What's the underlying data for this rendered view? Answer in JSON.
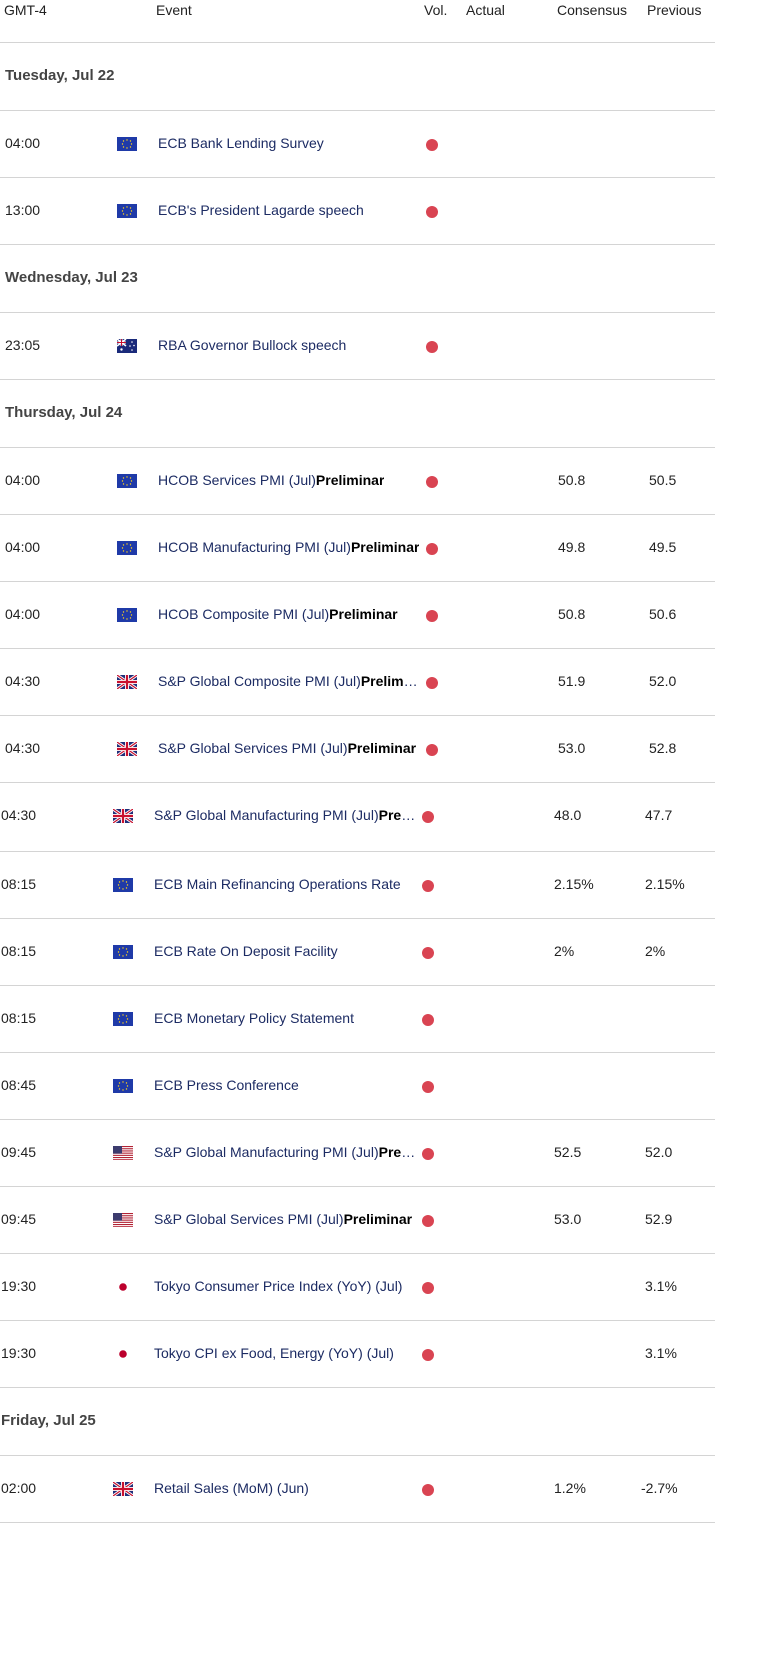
{
  "columns": {
    "tz": "GMT-4",
    "event": "Event",
    "vol": "Vol.",
    "actual": "Actual",
    "consensus": "Consensus",
    "previous": "Previous"
  },
  "colors": {
    "volatility_dot": "#d94452",
    "event_text": "#1c2b63"
  },
  "sections": [
    {
      "day": "Tuesday, Jul 22",
      "events": [
        {
          "time": "04:00",
          "flag": "eu-flag",
          "event": "ECB Bank Lending Survey",
          "bold": "",
          "volatility": "high",
          "actual": "",
          "consensus": "",
          "previous": ""
        },
        {
          "time": "13:00",
          "flag": "eu-flag",
          "event": "ECB's President Lagarde speech",
          "bold": "",
          "volatility": "high",
          "actual": "",
          "consensus": "",
          "previous": ""
        }
      ]
    },
    {
      "day": "Wednesday, Jul 23",
      "events": [
        {
          "time": "23:05",
          "flag": "au-flag",
          "event": "RBA Governor Bullock speech",
          "bold": "",
          "volatility": "high",
          "actual": "",
          "consensus": "",
          "previous": ""
        }
      ]
    },
    {
      "day": "Thursday, Jul 24",
      "events": [
        {
          "time": "04:00",
          "flag": "eu-flag",
          "event": "HCOB Services PMI (Jul)",
          "bold": "Preliminar",
          "volatility": "high",
          "actual": "",
          "consensus": "50.8",
          "previous": "50.5"
        },
        {
          "time": "04:00",
          "flag": "eu-flag",
          "event": "HCOB Manufacturing PMI (Jul)",
          "bold": "Preliminar",
          "volatility": "high",
          "actual": "",
          "consensus": "49.8",
          "previous": "49.5"
        },
        {
          "time": "04:00",
          "flag": "eu-flag",
          "event": "HCOB Composite PMI (Jul)",
          "bold": "Preliminar",
          "volatility": "high",
          "actual": "",
          "consensus": "50.8",
          "previous": "50.6"
        },
        {
          "time": "04:30",
          "flag": "uk-flag",
          "event": "S&P Global Composite PMI (Jul)",
          "bold": "Preliminar",
          "volatility": "high",
          "actual": "",
          "consensus": "51.9",
          "previous": "52.0"
        },
        {
          "time": "04:30",
          "flag": "uk-flag",
          "event": "S&P Global Services PMI (Jul)",
          "bold": "Preliminar",
          "volatility": "high",
          "actual": "",
          "consensus": "53.0",
          "previous": "52.8"
        },
        {
          "time": "04:30",
          "flag": "uk-flag",
          "event": "S&P Global Manufacturing PMI (Jul)",
          "bold": "Preliminar",
          "volatility": "high",
          "actual": "",
          "consensus": "48.0",
          "previous": "47.7"
        },
        {
          "time": "08:15",
          "flag": "eu-flag",
          "event": "ECB Main Refinancing Operations Rate",
          "bold": "",
          "volatility": "high",
          "actual": "",
          "consensus": "2.15%",
          "previous": "2.15%"
        },
        {
          "time": "08:15",
          "flag": "eu-flag",
          "event": "ECB Rate On Deposit Facility",
          "bold": "",
          "volatility": "high",
          "actual": "",
          "consensus": "2%",
          "previous": "2%"
        },
        {
          "time": "08:15",
          "flag": "eu-flag",
          "event": "ECB Monetary Policy Statement",
          "bold": "",
          "volatility": "high",
          "actual": "",
          "consensus": "",
          "previous": ""
        },
        {
          "time": "08:45",
          "flag": "eu-flag",
          "event": "ECB Press Conference",
          "bold": "",
          "volatility": "high",
          "actual": "",
          "consensus": "",
          "previous": ""
        },
        {
          "time": "09:45",
          "flag": "us-flag",
          "event": "S&P Global Manufacturing PMI (Jul)",
          "bold": "Preliminar",
          "volatility": "high",
          "actual": "",
          "consensus": "52.5",
          "previous": "52.0"
        },
        {
          "time": "09:45",
          "flag": "us-flag",
          "event": "S&P Global Services PMI (Jul)",
          "bold": "Preliminar",
          "volatility": "high",
          "actual": "",
          "consensus": "53.0",
          "previous": "52.9"
        },
        {
          "time": "19:30",
          "flag": "jp-flag",
          "event": "Tokyo Consumer Price Index (YoY) (Jul)",
          "bold": "",
          "volatility": "high",
          "actual": "",
          "consensus": "",
          "previous": "3.1%"
        },
        {
          "time": "19:30",
          "flag": "jp-flag",
          "event": "Tokyo CPI ex Food, Energy (YoY) (Jul)",
          "bold": "",
          "volatility": "high",
          "actual": "",
          "consensus": "",
          "previous": "3.1%"
        }
      ]
    },
    {
      "day": "Friday, Jul 25",
      "events": [
        {
          "time": "02:00",
          "flag": "uk-flag",
          "event": "Retail Sales (MoM) (Jun)",
          "bold": "",
          "volatility": "high",
          "actual": "",
          "consensus": "1.2%",
          "previous": "-2.7%"
        }
      ]
    }
  ]
}
